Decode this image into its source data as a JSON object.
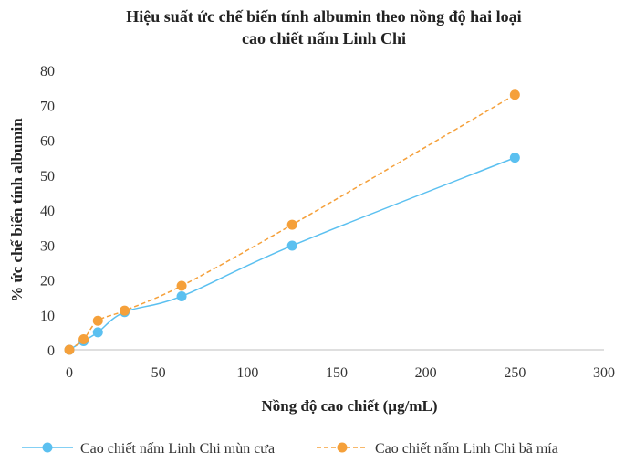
{
  "chart_data": {
    "type": "line",
    "title": [
      "Hiệu suất ức chế biến tính albumin theo nồng độ hai loại",
      "cao chiết nấm Linh Chi"
    ],
    "xlabel": "Nồng độ cao chiết (µg/mL)",
    "ylabel": "% ức chế biến tính albumin",
    "xlim": [
      0,
      300
    ],
    "ylim": [
      0,
      80
    ],
    "xticks": [
      0,
      50,
      100,
      150,
      200,
      250,
      300
    ],
    "yticks": [
      0,
      10,
      20,
      30,
      40,
      50,
      60,
      70,
      80
    ],
    "grid": false,
    "legend": "bottom",
    "series": [
      {
        "name": "Cao chiết nấm Linh Chi mùn cưa",
        "color": "#5bc0f0",
        "line_style": "solid",
        "x": [
          0,
          8,
          16,
          31,
          63,
          125,
          250
        ],
        "y": [
          0,
          2.5,
          5,
          10.8,
          15.3,
          29.8,
          55
        ]
      },
      {
        "name": "Cao chiết nấm Linh Chi bã mía",
        "color": "#f5a03a",
        "line_style": "dashed",
        "x": [
          0,
          8,
          16,
          31,
          63,
          125,
          250
        ],
        "y": [
          0,
          3,
          8.3,
          11.2,
          18.3,
          35.8,
          73
        ]
      }
    ]
  }
}
